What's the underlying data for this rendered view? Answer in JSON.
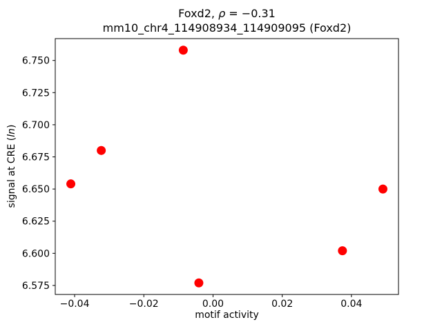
{
  "title": {
    "line1_prefix": "Foxd2, ",
    "line1_rho": "ρ",
    "line1_suffix": " = −0.31",
    "line2": "mm10_chr4_114908934_114909095 (Foxd2)"
  },
  "axes": {
    "xlabel": "motif activity",
    "ylabel_prefix": "signal at CRE (",
    "ylabel_italic": "ln",
    "ylabel_suffix": ")"
  },
  "chart_data": {
    "type": "scatter",
    "title": "Foxd2, ρ = −0.31",
    "subtitle": "mm10_chr4_114908934_114909095 (Foxd2)",
    "xlabel": "motif activity",
    "ylabel": "signal at CRE (ln)",
    "marker_color": "#ff0000",
    "marker_radius_px": 6.5,
    "frame_color": "#000000",
    "grid": false,
    "legend": null,
    "xlim": [
      -0.0456,
      0.0536
    ],
    "ylim": [
      6.568,
      6.767
    ],
    "xticks": [
      -0.04,
      -0.02,
      0.0,
      0.02,
      0.04
    ],
    "xtick_labels": [
      "−0.04",
      "−0.02",
      "0.00",
      "0.02",
      "0.04"
    ],
    "yticks": [
      6.575,
      6.6,
      6.625,
      6.65,
      6.675,
      6.7,
      6.725,
      6.75
    ],
    "ytick_labels": [
      "6.575",
      "6.600",
      "6.625",
      "6.650",
      "6.675",
      "6.700",
      "6.725",
      "6.750"
    ],
    "points": [
      {
        "x": -0.0411,
        "y": 6.654
      },
      {
        "x": -0.0323,
        "y": 6.68
      },
      {
        "x": -0.0086,
        "y": 6.758
      },
      {
        "x": -0.0041,
        "y": 6.577
      },
      {
        "x": 0.0374,
        "y": 6.602
      },
      {
        "x": 0.0491,
        "y": 6.65
      }
    ]
  }
}
